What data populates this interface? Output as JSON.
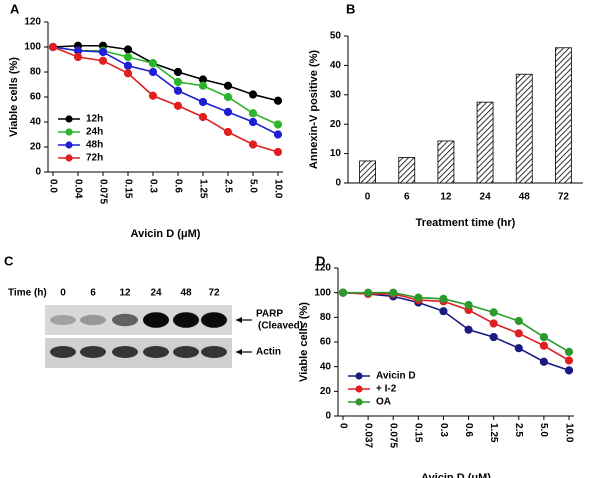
{
  "chart_data": [
    {
      "type": "line",
      "panel": "A",
      "y_label": "Viable cells (%)",
      "x_label": "Avicin D (μM)",
      "categories": [
        "0.0",
        "0.04",
        "0.075",
        "0.15",
        "0.3",
        "0.6",
        "1.25",
        "2.5",
        "5.0",
        "10.0"
      ],
      "series": [
        {
          "name": "12h",
          "color": "#000000",
          "values": [
            100,
            101,
            101,
            98,
            87,
            80,
            74,
            69,
            62,
            57
          ]
        },
        {
          "name": "24h",
          "color": "#2bb52b",
          "values": [
            100,
            97,
            97,
            92,
            87,
            72,
            69,
            60,
            47,
            38
          ]
        },
        {
          "name": "48h",
          "color": "#1f1fd6",
          "values": [
            100,
            97,
            96,
            85,
            80,
            65,
            56,
            48,
            40,
            30
          ]
        },
        {
          "name": "72h",
          "color": "#e02020",
          "values": [
            100,
            92,
            89,
            79,
            61,
            53,
            44,
            32,
            22,
            16
          ]
        }
      ],
      "ylim": [
        0,
        120
      ],
      "yticks": [
        0,
        20,
        40,
        60,
        80,
        100,
        120
      ],
      "legend": "lower-left"
    },
    {
      "type": "bar",
      "panel": "B",
      "y_label": "Annexin-V positive (%)",
      "x_label": "Treatment time (hr)",
      "categories": [
        "0",
        "6",
        "12",
        "24",
        "48",
        "72"
      ],
      "values": [
        7.5,
        8.7,
        14.3,
        27.5,
        37,
        46
      ],
      "ylim": [
        0,
        50
      ],
      "yticks": [
        0,
        10,
        20,
        30,
        40,
        50
      ]
    },
    {
      "type": "line",
      "panel": "D",
      "y_label": "Viable cells (%)",
      "x_label": "Avicin D (μM)",
      "categories": [
        "0",
        "0.037",
        "0.075",
        "0.15",
        "0.3",
        "0.6",
        "1.25",
        "2.5",
        "5.0",
        "10.0"
      ],
      "series": [
        {
          "name": "Avicin D",
          "color": "#1a1a80",
          "values": [
            100,
            99,
            97,
            92,
            85,
            70,
            64,
            55,
            44,
            37
          ]
        },
        {
          "name": "+ I-2",
          "color": "#e02020",
          "values": [
            100,
            99,
            99,
            94,
            93,
            86,
            75,
            67,
            57,
            45
          ]
        },
        {
          "name": "OA",
          "color": "#2b9a2b",
          "values": [
            100,
            100,
            100,
            96,
            95,
            90,
            84,
            77,
            64,
            52
          ]
        }
      ],
      "ylim": [
        0,
        120
      ],
      "yticks": [
        0,
        20,
        40,
        60,
        80,
        100,
        120
      ],
      "legend": "lower-left"
    }
  ],
  "blot": {
    "panel": "C",
    "time_label": "Time (h)",
    "lanes": [
      "0",
      "6",
      "12",
      "24",
      "48",
      "72"
    ],
    "rows": [
      {
        "label": [
          "PARP",
          "(Cleaved)"
        ]
      },
      {
        "label": [
          "Actin"
        ]
      }
    ]
  }
}
